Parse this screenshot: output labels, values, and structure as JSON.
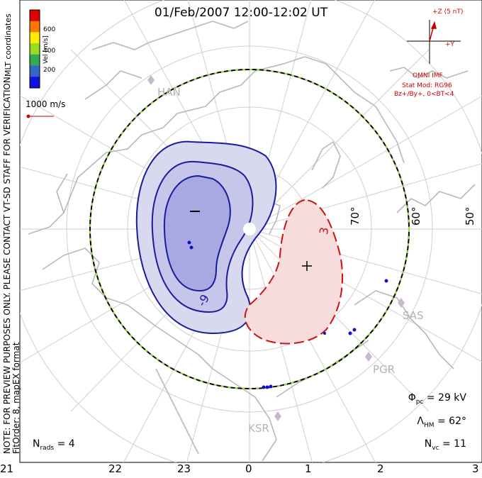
{
  "title": "01/Feb/2007 12:00-12:02 UT",
  "colorbar": {
    "label": "Vel [m/s]",
    "ticks": [
      "600",
      "400",
      "200"
    ],
    "colors": [
      "#e00000",
      "#ff7700",
      "#ffee00",
      "#99dd22",
      "#33aa55",
      "#3366cc",
      "#1111dd"
    ]
  },
  "coords_label": "MLT coordinates",
  "scale_label": "1000 m/s",
  "note_line1": "NOTE: FOR PREVIEW PURPOSES ONLY. PLEASE CONTACT VT-SD STAFF FOR VERIFICATION.",
  "note_line2": "FitOrder: 8, mapEX format",
  "imf": {
    "z_label": "+Z (5 nT)",
    "y_label": "+Y",
    "model_title": "OMNI IMF",
    "stat_mod": "Stat Mod: RG96",
    "conditions": "Bz+/By+, 0<BT<4"
  },
  "latitude_labels": [
    "70°",
    "60°",
    "50°"
  ],
  "mlt_labels": [
    "21",
    "22",
    "23",
    "0",
    "1",
    "2",
    "3"
  ],
  "stations": [
    "HAN",
    "SAS",
    "PGR",
    "KSR"
  ],
  "contours": {
    "negative_label": "-9",
    "positive_label": "3",
    "min_marker": "–",
    "max_marker": "+"
  },
  "stats": {
    "phi_symbol": "Φ",
    "phi_sub": "pc",
    "phi_value": "= 29 kV",
    "lambda_symbol": "Λ",
    "lambda_sub": "HM",
    "lambda_value": "= 62°",
    "nvc_symbol": "N",
    "nvc_sub": "vc",
    "nvc_value": "= 11",
    "nrads_symbol": "N",
    "nrads_sub": "rads",
    "nrads_value": "= 4"
  }
}
